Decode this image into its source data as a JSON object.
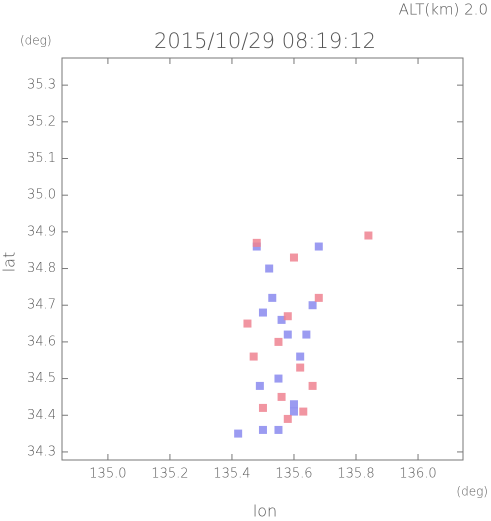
{
  "chart_data": {
    "type": "scatter",
    "title": "2015/10/29 08:19:12",
    "annotation": "ALT(km) 2.0",
    "y_unit": "(deg)",
    "x_unit": "(deg)",
    "x_label": "lon",
    "y_label": "lat",
    "xlim": [
      134.852,
      136.145
    ],
    "ylim": [
      34.278,
      35.374
    ],
    "xticks": [
      {
        "value": 135,
        "label": "135.0"
      },
      135.2,
      135.4,
      135.6,
      135.8,
      {
        "value": 136,
        "label": "136.0"
      }
    ],
    "yticks": [
      34.3,
      34.4,
      34.5,
      34.6,
      34.7,
      34.8,
      34.9,
      {
        "value": 35,
        "label": "35.0"
      },
      35.1,
      35.2,
      35.3
    ],
    "series": [
      {
        "color": "#8a8aee",
        "x": [
          135.55,
          135.5,
          135.6,
          135.56,
          135.52,
          135.48,
          135.62,
          135.55,
          135.58,
          135.5,
          135.66,
          135.6,
          135.68,
          135.42,
          135.53,
          135.49,
          135.64
        ],
        "values": [
          34.36,
          34.36,
          34.43,
          34.66,
          34.8,
          34.86,
          34.56,
          34.5,
          34.62,
          34.68,
          34.7,
          34.41,
          34.86,
          34.35,
          34.72,
          34.48,
          34.62
        ]
      },
      {
        "color": "#ee8290",
        "x": [
          135.58,
          135.62,
          135.5,
          135.63,
          135.58,
          135.84,
          135.6,
          135.66,
          135.45,
          135.55,
          135.48,
          135.68,
          135.56,
          135.47
        ],
        "values": [
          34.67,
          34.53,
          34.42,
          34.41,
          34.39,
          34.89,
          34.83,
          34.48,
          34.65,
          34.6,
          34.87,
          34.72,
          34.45,
          34.56
        ]
      }
    ]
  }
}
